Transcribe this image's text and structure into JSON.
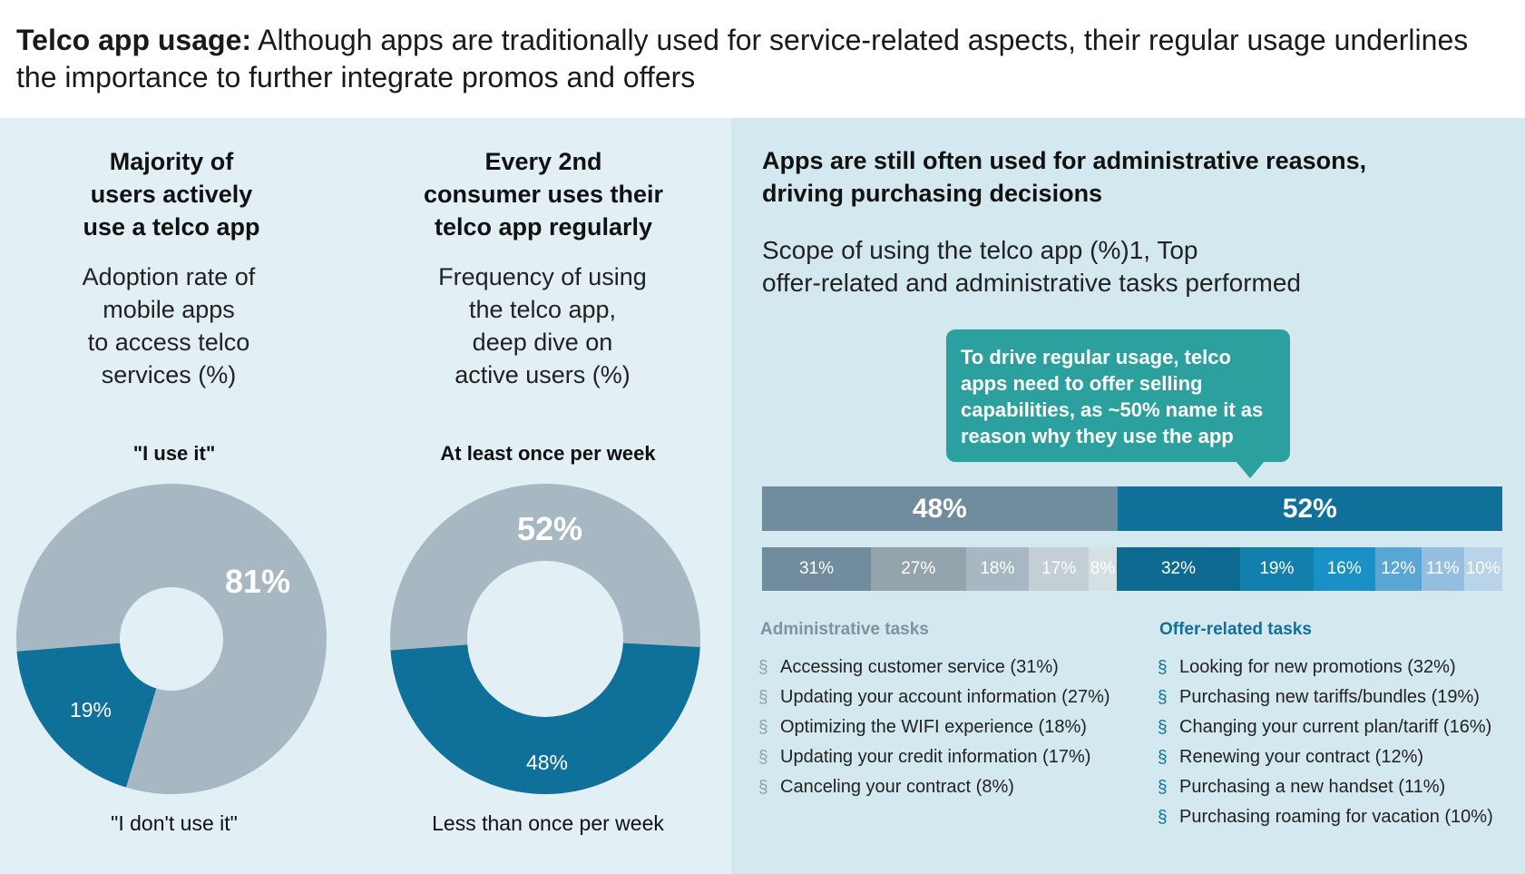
{
  "header": {
    "bold": "Telco app usage:",
    "text": " Although apps are traditionally used for service-related aspects, their regular usage underlines the importance to further integrate promos and offers"
  },
  "colors": {
    "grey": "#a8b8c2",
    "blue": "#0f7099",
    "teal": "#2ca09e",
    "left_bg": "#e2eff5",
    "right_bg": "#d4e8ef"
  },
  "col1": {
    "title": [
      "Majority of",
      "users actively",
      "use a telco app"
    ],
    "subtitle": [
      "Adoption rate of",
      "mobile apps",
      "to access telco",
      "services (%)"
    ]
  },
  "col2": {
    "title": [
      "Every 2nd",
      "consumer uses their",
      "telco app regularly"
    ],
    "subtitle": [
      "Frequency of using",
      "the telco app,",
      "deep dive on",
      "active users (%)"
    ]
  },
  "right": {
    "title": [
      "Apps are still often used for administrative reasons,",
      "driving purchasing decisions"
    ],
    "subtitle": [
      "Scope of using the telco app (%)1, Top",
      "offer-related and administrative tasks performed"
    ],
    "callout": "To drive regular usage, telco apps need to offer selling capabilities, as ~50% name it as reason why they use the app",
    "admin_heading": "Administrative tasks",
    "offer_heading": "Offer-related tasks",
    "admin_items": [
      "Accessing customer service (31%)",
      "Updating your account information (27%)",
      "Optimizing the WIFI experience (18%)",
      "Updating your credit information (17%)",
      "Canceling your contract (8%)"
    ],
    "offer_items": [
      "Looking for new promotions (32%)",
      "Purchasing new tariffs/bundles (19%)",
      "Changing your current plan/tariff (16%)",
      "Renewing your contract (12%)",
      "Purchasing a new handset (11%)",
      "Purchasing roaming for vacation (10%)"
    ],
    "bullet": "§"
  },
  "chart_data": [
    {
      "type": "pie",
      "variant": "donut",
      "top_label": "\"I use it\"",
      "bottom_label": "\"I don't use it\"",
      "slices": [
        {
          "label": "I use it",
          "value": 81,
          "text": "81%",
          "color": "#a8b8c2"
        },
        {
          "label": "I don't use it",
          "value": 19,
          "text": "19%",
          "color": "#0f7099"
        }
      ]
    },
    {
      "type": "pie",
      "variant": "donut",
      "top_label": "At least once per week",
      "bottom_label": "Less than once per week",
      "slices": [
        {
          "label": "At least once per week",
          "value": 52,
          "text": "52%",
          "color": "#a8b8c2"
        },
        {
          "label": "Less than once per week",
          "value": 48,
          "text": "48%",
          "color": "#0f7099"
        }
      ]
    },
    {
      "type": "bar",
      "variant": "stacked-horizontal",
      "totals": [
        {
          "label": "Administrative tasks",
          "value": 48,
          "text": "48%",
          "color": "#718c9c"
        },
        {
          "label": "Offer-related tasks",
          "value": 52,
          "text": "52%",
          "color": "#11709a"
        }
      ],
      "admin": [
        {
          "value": 31,
          "text": "31%",
          "color": "#718c9c"
        },
        {
          "value": 27,
          "text": "27%",
          "color": "#94a4ad"
        },
        {
          "value": 18,
          "text": "18%",
          "color": "#a8b8c2"
        },
        {
          "value": 17,
          "text": "17%",
          "color": "#c3ced5"
        },
        {
          "value": 8,
          "text": "8%",
          "color": "#d5e0e5"
        }
      ],
      "offer": [
        {
          "value": 32,
          "text": "32%",
          "color": "#0e6a91"
        },
        {
          "value": 19,
          "text": "19%",
          "color": "#137fad"
        },
        {
          "value": 16,
          "text": "16%",
          "color": "#1990c6"
        },
        {
          "value": 12,
          "text": "12%",
          "color": "#5aa6d4"
        },
        {
          "value": 11,
          "text": "11%",
          "color": "#94bfe0"
        },
        {
          "value": 10,
          "text": "10%",
          "color": "#b9d3e8"
        }
      ]
    }
  ]
}
